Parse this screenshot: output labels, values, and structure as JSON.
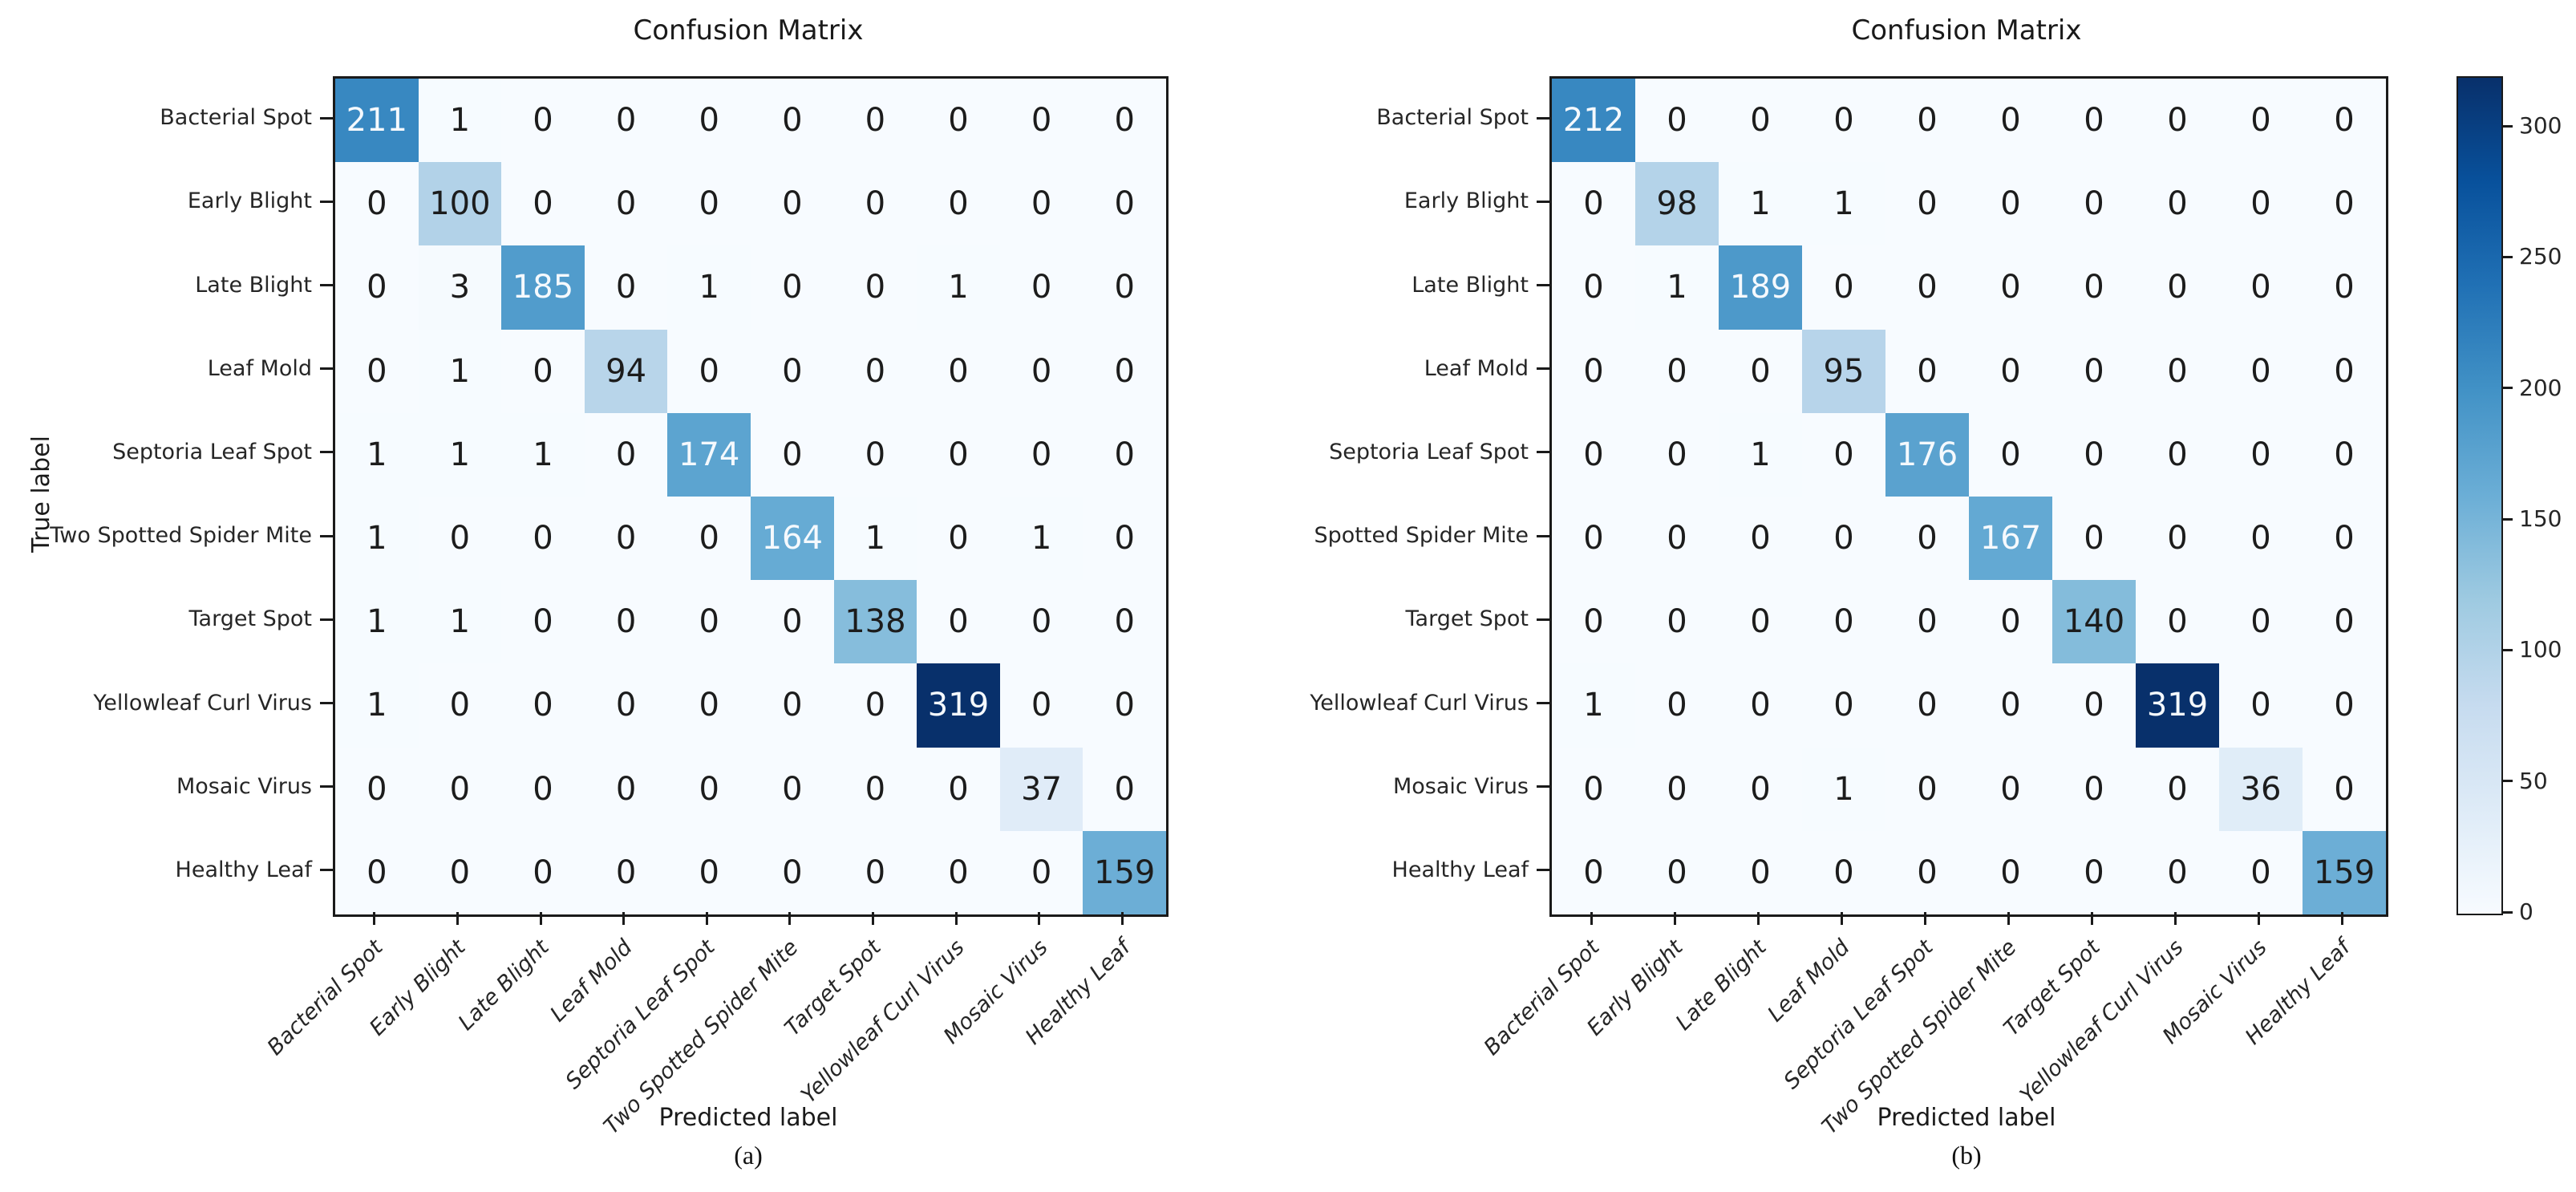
{
  "figure": {
    "background": "#ffffff",
    "axis_color": "#1a1a1a"
  },
  "colors": {
    "colormap_name": "Blues",
    "blues_stops": [
      "#f7fbff",
      "#deebf7",
      "#c6dbef",
      "#9ecae1",
      "#6baed6",
      "#4292c6",
      "#2171b5",
      "#08519c",
      "#08306b"
    ],
    "cell_text_dark": "#1c1c1c",
    "cell_text_light": "#f5f9fd"
  },
  "colorbar": {
    "ticks": [
      0,
      50,
      100,
      150,
      200,
      250,
      300
    ],
    "vmin": 0,
    "vmax": 319
  },
  "chart_data": [
    {
      "type": "heatmap",
      "title": "Confusion Matrix",
      "xlabel": "Predicted label",
      "ylabel": "True label",
      "caption": "(a)",
      "colormap": "Blues",
      "vmin": 0,
      "vmax": 319,
      "text_threshold": 159.5,
      "x_categories": [
        "Bacterial Spot",
        "Early Blight",
        "Late Blight",
        "Leaf Mold",
        "Septoria Leaf Spot",
        "Two Spotted Spider Mite",
        "Target Spot",
        "Yellowleaf Curl Virus",
        "Mosaic Virus",
        "Healthy Leaf"
      ],
      "y_categories": [
        "Bacterial Spot",
        "Early Blight",
        "Late Blight",
        "Leaf Mold",
        "Septoria Leaf Spot",
        "Two Spotted Spider Mite",
        "Target Spot",
        "Yellowleaf Curl Virus",
        "Mosaic Virus",
        "Healthy Leaf"
      ],
      "matrix": [
        [
          211,
          1,
          0,
          0,
          0,
          0,
          0,
          0,
          0,
          0
        ],
        [
          0,
          100,
          0,
          0,
          0,
          0,
          0,
          0,
          0,
          0
        ],
        [
          0,
          3,
          185,
          0,
          1,
          0,
          0,
          1,
          0,
          0
        ],
        [
          0,
          1,
          0,
          94,
          0,
          0,
          0,
          0,
          0,
          0
        ],
        [
          1,
          1,
          1,
          0,
          174,
          0,
          0,
          0,
          0,
          0
        ],
        [
          1,
          0,
          0,
          0,
          0,
          164,
          1,
          0,
          1,
          0
        ],
        [
          1,
          1,
          0,
          0,
          0,
          0,
          138,
          0,
          0,
          0
        ],
        [
          1,
          0,
          0,
          0,
          0,
          0,
          0,
          319,
          0,
          0
        ],
        [
          0,
          0,
          0,
          0,
          0,
          0,
          0,
          0,
          37,
          0
        ],
        [
          0,
          0,
          0,
          0,
          0,
          0,
          0,
          0,
          0,
          159
        ]
      ]
    },
    {
      "type": "heatmap",
      "title": "Confusion Matrix",
      "xlabel": "Predicted label",
      "ylabel": "",
      "caption": "(b)",
      "colormap": "Blues",
      "vmin": 0,
      "vmax": 319,
      "text_threshold": 159.5,
      "x_categories": [
        "Bacterial Spot",
        "Early Blight",
        "Late Blight",
        "Leaf Mold",
        "Septoria Leaf Spot",
        "Two Spotted Spider Mite",
        "Target Spot",
        "Yellowleaf Curl Virus",
        "Mosaic Virus",
        "Healthy Leaf"
      ],
      "y_categories": [
        "Bacterial Spot",
        "Early Blight",
        "Late Blight",
        "Leaf Mold",
        "Septoria Leaf Spot",
        "Spotted Spider Mite",
        "Target Spot",
        "Yellowleaf Curl Virus",
        "Mosaic Virus",
        "Healthy Leaf"
      ],
      "matrix": [
        [
          212,
          0,
          0,
          0,
          0,
          0,
          0,
          0,
          0,
          0
        ],
        [
          0,
          98,
          1,
          1,
          0,
          0,
          0,
          0,
          0,
          0
        ],
        [
          0,
          1,
          189,
          0,
          0,
          0,
          0,
          0,
          0,
          0
        ],
        [
          0,
          0,
          0,
          95,
          0,
          0,
          0,
          0,
          0,
          0
        ],
        [
          0,
          0,
          1,
          0,
          176,
          0,
          0,
          0,
          0,
          0
        ],
        [
          0,
          0,
          0,
          0,
          0,
          167,
          0,
          0,
          0,
          0
        ],
        [
          0,
          0,
          0,
          0,
          0,
          0,
          140,
          0,
          0,
          0
        ],
        [
          1,
          0,
          0,
          0,
          0,
          0,
          0,
          319,
          0,
          0
        ],
        [
          0,
          0,
          0,
          1,
          0,
          0,
          0,
          0,
          36,
          0
        ],
        [
          0,
          0,
          0,
          0,
          0,
          0,
          0,
          0,
          0,
          159
        ]
      ]
    }
  ]
}
